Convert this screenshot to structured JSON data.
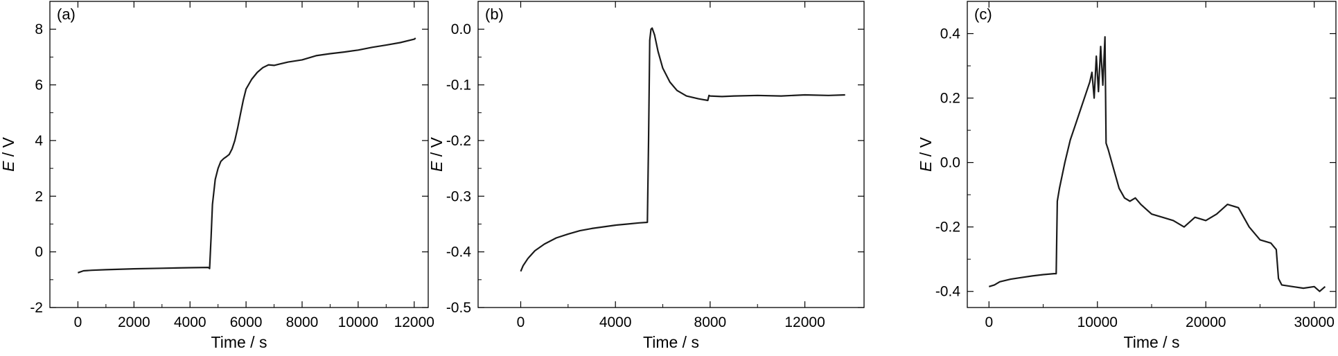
{
  "chart_data": [
    {
      "type": "line",
      "panel_label": "(a)",
      "xlabel": "Time / s",
      "ylabel": {
        "symbol": "E",
        "unit": " / V"
      },
      "xlim": [
        -1000,
        12500
      ],
      "ylim": [
        -2,
        9
      ],
      "xticks": [
        0,
        2000,
        4000,
        6000,
        8000,
        10000,
        12000
      ],
      "xtick_labels": [
        "0",
        "2000",
        "4000",
        "6000",
        "8000",
        "10000",
        "12000"
      ],
      "yticks": [
        -2,
        0,
        2,
        4,
        6,
        8
      ],
      "ytick_labels": [
        "-2",
        "0",
        "2",
        "4",
        "6",
        "8"
      ],
      "grid": false,
      "line_color": "#1a1a1a",
      "series": [
        {
          "x": [
            0,
            200,
            500,
            1000,
            2000,
            3000,
            4000,
            4650,
            4700,
            4750,
            4800,
            4900,
            5000,
            5100,
            5200,
            5300,
            5400,
            5500,
            5600,
            5700,
            5800,
            5900,
            6000,
            6200,
            6400,
            6600,
            6800,
            7000,
            7200,
            7500,
            8000,
            8500,
            9000,
            9500,
            10000,
            10500,
            11000,
            11500,
            12000,
            12050
          ],
          "y": [
            -0.75,
            -0.68,
            -0.66,
            -0.64,
            -0.61,
            -0.59,
            -0.57,
            -0.56,
            -0.6,
            0.5,
            1.7,
            2.6,
            3.0,
            3.25,
            3.35,
            3.42,
            3.5,
            3.7,
            4.0,
            4.45,
            4.95,
            5.45,
            5.85,
            6.2,
            6.45,
            6.62,
            6.72,
            6.7,
            6.75,
            6.82,
            6.9,
            7.05,
            7.12,
            7.18,
            7.25,
            7.35,
            7.43,
            7.52,
            7.64,
            7.68
          ]
        }
      ]
    },
    {
      "type": "line",
      "panel_label": "(b)",
      "xlabel": "Time / s",
      "ylabel": {
        "symbol": "E",
        "unit": " / V"
      },
      "xlim": [
        -1800,
        14500
      ],
      "ylim": [
        -0.5,
        0.05
      ],
      "xticks": [
        0,
        4000,
        8000,
        12000
      ],
      "xtick_labels": [
        "0",
        "4000",
        "8000",
        "12000"
      ],
      "yticks": [
        -0.5,
        -0.4,
        -0.3,
        -0.2,
        -0.1,
        0.0
      ],
      "ytick_labels": [
        "-0.5",
        "-0.4",
        "-0.3",
        "-0.2",
        "-0.1",
        "0.0"
      ],
      "grid": false,
      "line_color": "#1a1a1a",
      "series": [
        {
          "x": [
            0,
            100,
            300,
            600,
            1000,
            1500,
            2000,
            2500,
            3000,
            3500,
            4000,
            4500,
            5000,
            5350,
            5400,
            5450,
            5500,
            5550,
            5650,
            5800,
            6000,
            6300,
            6600,
            7000,
            7500,
            7900,
            7950,
            8000,
            8500,
            9000,
            10000,
            11000,
            12000,
            13000,
            13700
          ],
          "y": [
            -0.435,
            -0.425,
            -0.412,
            -0.398,
            -0.386,
            -0.375,
            -0.368,
            -0.362,
            -0.358,
            -0.355,
            -0.352,
            -0.35,
            -0.348,
            -0.347,
            -0.2,
            -0.02,
            0.0,
            0.002,
            -0.01,
            -0.04,
            -0.07,
            -0.095,
            -0.11,
            -0.12,
            -0.125,
            -0.128,
            -0.119,
            -0.12,
            -0.121,
            -0.12,
            -0.119,
            -0.12,
            -0.118,
            -0.119,
            -0.118
          ]
        }
      ]
    },
    {
      "type": "line",
      "panel_label": "(c)",
      "xlabel": "Time / s",
      "ylabel": {
        "symbol": "E",
        "unit": " / V"
      },
      "xlim": [
        -2000,
        32000
      ],
      "ylim": [
        -0.45,
        0.5
      ],
      "xticks": [
        0,
        10000,
        20000,
        30000
      ],
      "xtick_labels": [
        "0",
        "10000",
        "20000",
        "30000"
      ],
      "yticks": [
        -0.4,
        -0.2,
        0.0,
        0.2,
        0.4
      ],
      "ytick_labels": [
        "-0.4",
        "-0.2",
        "0.0",
        "0.2",
        "0.4"
      ],
      "grid": false,
      "line_color": "#1a1a1a",
      "series": [
        {
          "x": [
            0,
            500,
            1000,
            2000,
            3000,
            4000,
            5000,
            6000,
            6200,
            6300,
            6500,
            7000,
            7500,
            8000,
            8500,
            9000,
            9300,
            9500,
            9700,
            9900,
            10100,
            10300,
            10500,
            10700,
            10800,
            11000,
            11500,
            12000,
            12500,
            13000,
            13500,
            14000,
            15000,
            16000,
            17000,
            18000,
            19000,
            20000,
            21000,
            22000,
            23000,
            24000,
            25000,
            26000,
            26500,
            26700,
            27000,
            28000,
            29000,
            30000,
            30500,
            31000
          ],
          "y": [
            -0.385,
            -0.38,
            -0.37,
            -0.362,
            -0.357,
            -0.352,
            -0.348,
            -0.345,
            -0.345,
            -0.12,
            -0.08,
            0.0,
            0.07,
            0.12,
            0.17,
            0.22,
            0.25,
            0.28,
            0.2,
            0.33,
            0.22,
            0.36,
            0.24,
            0.39,
            0.06,
            0.04,
            -0.02,
            -0.08,
            -0.11,
            -0.12,
            -0.11,
            -0.13,
            -0.16,
            -0.17,
            -0.18,
            -0.2,
            -0.17,
            -0.18,
            -0.16,
            -0.13,
            -0.14,
            -0.2,
            -0.24,
            -0.25,
            -0.27,
            -0.36,
            -0.38,
            -0.385,
            -0.39,
            -0.385,
            -0.4,
            -0.385
          ]
        }
      ]
    }
  ]
}
